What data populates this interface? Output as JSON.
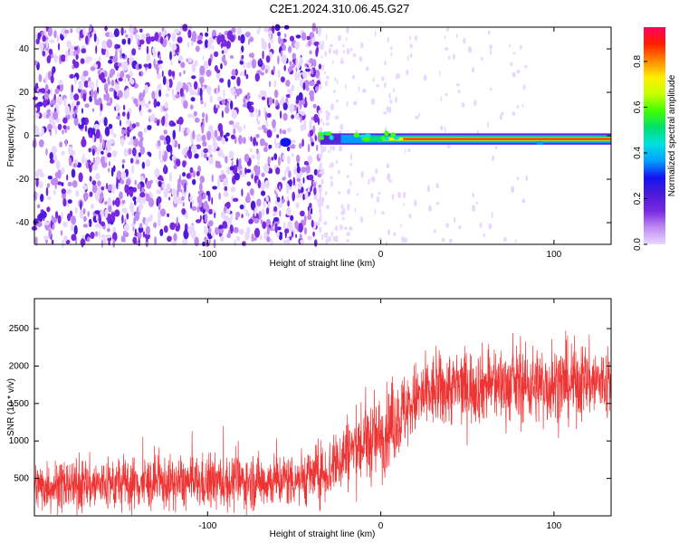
{
  "title": "C2E1.2024.310.06.45.G27",
  "colors": {
    "snr_line": "#ee3333",
    "frame": "#000000",
    "colormap": [
      "#ffffff",
      "#e8d8ff",
      "#c08af0",
      "#7a28e0",
      "#4c1ad8",
      "#1414f0",
      "#00a0ff",
      "#00e0e0",
      "#00e070",
      "#40ff00",
      "#c8ff00",
      "#ffee00",
      "#ff8800",
      "#ff2000",
      "#ff0060"
    ]
  },
  "chart_data": [
    {
      "type": "heatmap",
      "xlabel": "Height of straight line (km)",
      "ylabel": "Frequency (Hz)",
      "xlim": [
        -200,
        133
      ],
      "ylim": [
        -50,
        50
      ],
      "xticks": [
        -100,
        0,
        100
      ],
      "yticks": [
        -40,
        -20,
        0,
        20,
        40
      ],
      "colorbar": {
        "label": "Normalized spectral amplitude",
        "range": [
          0.0,
          0.95
        ],
        "ticks": [
          0.0,
          0.2,
          0.4,
          0.6,
          0.8
        ]
      },
      "features": {
        "noise_region_x": [
          -200,
          -35
        ],
        "signal_start_x": -35,
        "signal_frequency_hz": -1.5,
        "signal_dip_x": 92
      }
    },
    {
      "type": "line",
      "xlabel": "Height of straight line (km)",
      "ylabel": "SNR (10 * v/v)",
      "xlim": [
        -200,
        133
      ],
      "ylim": [
        0,
        2900
      ],
      "xticks": [
        -100,
        0,
        100
      ],
      "yticks": [
        500,
        1000,
        1500,
        2000,
        2500
      ],
      "series": [
        {
          "x": [
            -200,
            -180,
            -160,
            -140,
            -120,
            -100,
            -80,
            -60,
            -40,
            -30,
            -20,
            -10,
            0,
            10,
            20,
            30,
            40,
            60,
            80,
            100,
            120,
            133
          ],
          "y_mean": [
            400,
            400,
            420,
            430,
            430,
            440,
            450,
            470,
            530,
            600,
            850,
            950,
            1050,
            1300,
            1550,
            1650,
            1700,
            1750,
            1750,
            1750,
            1800,
            1750
          ],
          "y_spread": [
            350,
            380,
            400,
            400,
            380,
            400,
            400,
            400,
            420,
            450,
            550,
            600,
            600,
            600,
            550,
            550,
            550,
            550,
            550,
            600,
            550,
            550
          ]
        }
      ]
    }
  ]
}
